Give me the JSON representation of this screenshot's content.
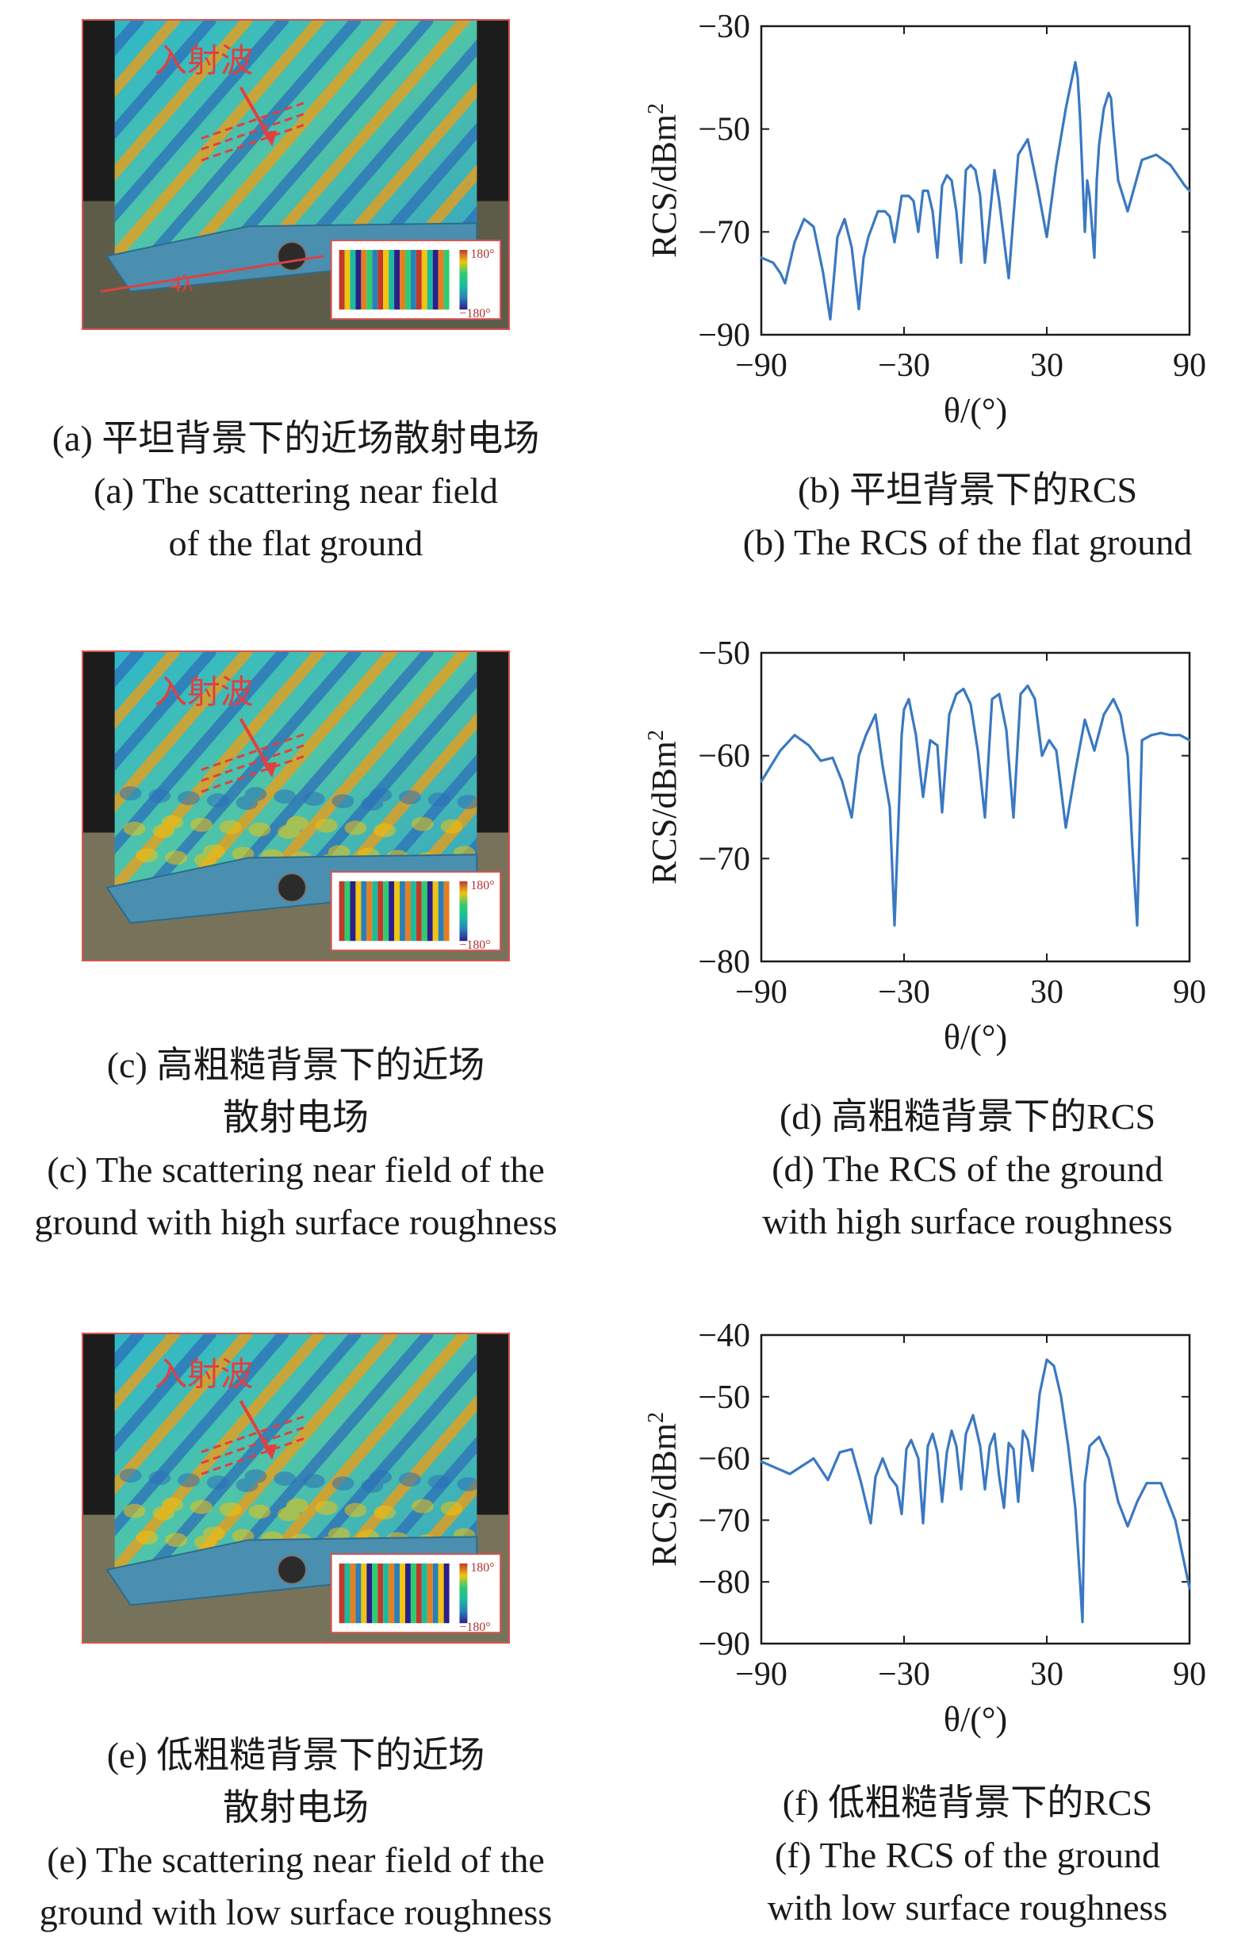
{
  "panels": [
    {
      "id": "a",
      "image": {
        "arrow_label": "入射波",
        "extent_label": "4λ",
        "colorbar_max": "180°",
        "colorbar_min": "−180°",
        "ground": "flat"
      },
      "caption_lines": [
        "(a) 平坦背景下的近场散射电场",
        "(a) The scattering near field",
        "of the flat ground"
      ]
    },
    {
      "id": "b",
      "caption_lines": [
        "(b) 平坦背景下的RCS",
        "(b) The RCS of the flat ground"
      ]
    },
    {
      "id": "c",
      "image": {
        "arrow_label": "入射波",
        "extent_label": "",
        "colorbar_max": "180°",
        "colorbar_min": "−180°",
        "ground": "high-rough"
      },
      "caption_lines": [
        "(c) 高粗糙背景下的近场",
        "散射电场",
        "(c) The scattering near field of the",
        "ground with high surface roughness"
      ]
    },
    {
      "id": "d",
      "caption_lines": [
        "(d) 高粗糙背景下的RCS",
        "(d) The RCS of  the ground",
        "with high surface roughness"
      ]
    },
    {
      "id": "e",
      "image": {
        "arrow_label": "入射波",
        "extent_label": "",
        "colorbar_max": "180°",
        "colorbar_min": "−180°",
        "ground": "low-rough"
      },
      "caption_lines": [
        "(e) 低粗糙背景下的近场",
        "散射电场",
        "(e) The scattering near field of the",
        "ground with low surface roughness"
      ]
    },
    {
      "id": "f",
      "caption_lines": [
        "(f) 低粗糙背景下的RCS",
        "(f) The RCS of  the ground",
        "with low surface roughness"
      ]
    }
  ],
  "chart_data": [
    {
      "panel": "b",
      "type": "line",
      "title": "",
      "xlabel": "θ/(°)",
      "ylabel": "RCS/dBm2",
      "xlim": [
        -90,
        90
      ],
      "ylim": [
        -90,
        -30
      ],
      "xticks": [
        -90,
        -30,
        30,
        90
      ],
      "yticks": [
        -30,
        -50,
        -70,
        -90
      ],
      "tick_labels_x": [
        "−90",
        "−30",
        "30",
        "90"
      ],
      "tick_labels_y": [
        "−30",
        "−50",
        "−70",
        "−90"
      ],
      "grid": false,
      "line_color": "#3a78c2",
      "series": [
        {
          "x": [
            -90,
            -85,
            -82,
            -80,
            -76,
            -72,
            -68,
            -64,
            -61,
            -58,
            -55,
            -52,
            -49,
            -47,
            -45,
            -41,
            -38,
            -36,
            -34,
            -31,
            -28,
            -26,
            -24,
            -22,
            -20,
            -18,
            -16,
            -14,
            -12,
            -10,
            -8,
            -6,
            -4,
            -2,
            0,
            2,
            4,
            6,
            8,
            10,
            14,
            18,
            22,
            26,
            30,
            34,
            38,
            42,
            43,
            44,
            46,
            47,
            48,
            50,
            51,
            52,
            54,
            56,
            57,
            58,
            60,
            64,
            70,
            76,
            82,
            88,
            90
          ],
          "y": [
            -75,
            -76,
            -78,
            -80,
            -72,
            -67.5,
            -69,
            -78,
            -87,
            -71,
            -67.5,
            -73,
            -85,
            -75,
            -71,
            -66,
            -66,
            -67,
            -72,
            -63,
            -63,
            -64,
            -70,
            -62,
            -62,
            -66,
            -75,
            -61,
            -59,
            -60,
            -66,
            -76,
            -58,
            -57,
            -58,
            -63,
            -76,
            -67,
            -58,
            -64,
            -79,
            -55,
            -52,
            -61,
            -71,
            -57,
            -46,
            -37,
            -40,
            -48,
            -70,
            -60,
            -63,
            -75,
            -60,
            -53,
            -46,
            -43,
            -44,
            -50,
            -60,
            -66,
            -56,
            -55,
            -57,
            -61,
            -62
          ]
        }
      ]
    },
    {
      "panel": "d",
      "type": "line",
      "title": "",
      "xlabel": "θ/(°)",
      "ylabel": "RCS/dBm2",
      "xlim": [
        -90,
        90
      ],
      "ylim": [
        -80,
        -50
      ],
      "xticks": [
        -90,
        -30,
        30,
        90
      ],
      "yticks": [
        -50,
        -60,
        -70,
        -80
      ],
      "tick_labels_x": [
        "−90",
        "−30",
        "30",
        "90"
      ],
      "tick_labels_y": [
        "−50",
        "−60",
        "−70",
        "−80"
      ],
      "grid": false,
      "line_color": "#3a78c2",
      "series": [
        {
          "x": [
            -90,
            -82,
            -76,
            -70,
            -65,
            -60,
            -56,
            -52,
            -49,
            -46,
            -42,
            -39,
            -36,
            -34,
            -31,
            -30,
            -28,
            -25,
            -22,
            -19,
            -16,
            -14,
            -11,
            -8,
            -5,
            -2,
            1,
            4,
            7,
            10,
            13,
            16,
            19,
            22,
            25,
            28,
            31,
            34,
            38,
            42,
            46,
            50,
            54,
            58,
            61,
            64,
            66,
            68,
            70,
            74,
            78,
            82,
            86,
            90
          ],
          "y": [
            -62.5,
            -59.5,
            -58,
            -59,
            -60.5,
            -60.2,
            -62.5,
            -66,
            -60,
            -58,
            -56,
            -61,
            -65,
            -76.5,
            -58,
            -55.5,
            -54.5,
            -58,
            -64,
            -58.5,
            -59,
            -65.5,
            -56,
            -54,
            -53.5,
            -55,
            -59.5,
            -66,
            -54.5,
            -54,
            -57.5,
            -66,
            -54,
            -53.2,
            -54.5,
            -60,
            -58.5,
            -59.5,
            -67,
            -61.5,
            -56.5,
            -59.5,
            -56,
            -54.5,
            -56,
            -60,
            -69,
            -76.5,
            -58.5,
            -58,
            -57.8,
            -58,
            -58,
            -58.5
          ]
        }
      ]
    },
    {
      "panel": "f",
      "type": "line",
      "title": "",
      "xlabel": "θ/(°)",
      "ylabel": "RCS/dBm2",
      "xlim": [
        -90,
        90
      ],
      "ylim": [
        -90,
        -40
      ],
      "xticks": [
        -90,
        -30,
        30,
        90
      ],
      "yticks": [
        -40,
        -50,
        -60,
        -70,
        -80,
        -90
      ],
      "tick_labels_x": [
        "−90",
        "−30",
        "30",
        "90"
      ],
      "tick_labels_y": [
        "−40",
        "−50",
        "−60",
        "−70",
        "−80",
        "−90"
      ],
      "grid": false,
      "line_color": "#3a78c2",
      "series": [
        {
          "x": [
            -90,
            -84,
            -78,
            -72,
            -68,
            -62,
            -57,
            -52,
            -48,
            -44,
            -42,
            -39,
            -36,
            -33,
            -31,
            -29,
            -27,
            -24,
            -22,
            -20,
            -18,
            -16,
            -14,
            -12,
            -10,
            -8,
            -6,
            -4,
            -1,
            2,
            4,
            6,
            8,
            10,
            12,
            14,
            16,
            18,
            20,
            22,
            24,
            27,
            30,
            33,
            36,
            39,
            42,
            44,
            45,
            46,
            48,
            52,
            56,
            60,
            64,
            68,
            72,
            78,
            84,
            90
          ],
          "y": [
            -60.5,
            -61.5,
            -62.5,
            -61,
            -60,
            -63.5,
            -59,
            -58.5,
            -64,
            -70.5,
            -63,
            -60,
            -63,
            -64.5,
            -69,
            -58.5,
            -57,
            -60,
            -70.5,
            -58,
            -56,
            -59,
            -67,
            -59,
            -55.5,
            -58,
            -65,
            -56,
            -53,
            -58,
            -65,
            -58,
            -56,
            -63,
            -68,
            -57.5,
            -58.5,
            -67,
            -55.5,
            -57,
            -62,
            -49.5,
            -44,
            -45,
            -50,
            -58,
            -68,
            -80,
            -86.5,
            -64,
            -58,
            -56.5,
            -60,
            -67,
            -71,
            -67,
            -64,
            -64,
            -70,
            -81
          ]
        }
      ]
    }
  ]
}
